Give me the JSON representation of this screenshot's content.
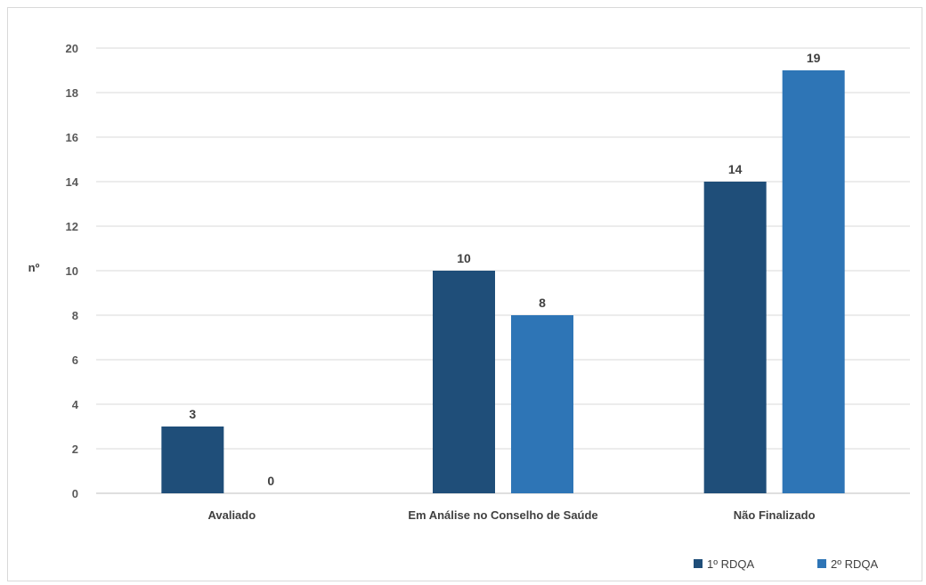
{
  "chart_data": {
    "type": "bar",
    "title": "",
    "xlabel": "",
    "ylabel": "nº",
    "categories": [
      "Avaliado",
      "Em Análise no Conselho de Saúde",
      "Não Finalizado"
    ],
    "series": [
      {
        "name": "1º RDQA",
        "values": [
          3,
          10,
          14
        ],
        "color": "#1f4e79"
      },
      {
        "name": "2º RDQA",
        "values": [
          0,
          8,
          19
        ],
        "color": "#2e75b6"
      }
    ],
    "ylim": [
      0,
      20
    ],
    "yticks": [
      0,
      2,
      4,
      6,
      8,
      10,
      12,
      14,
      16,
      18,
      20
    ],
    "grid": true,
    "legend_position": "bottom-right",
    "data_labels": true
  }
}
